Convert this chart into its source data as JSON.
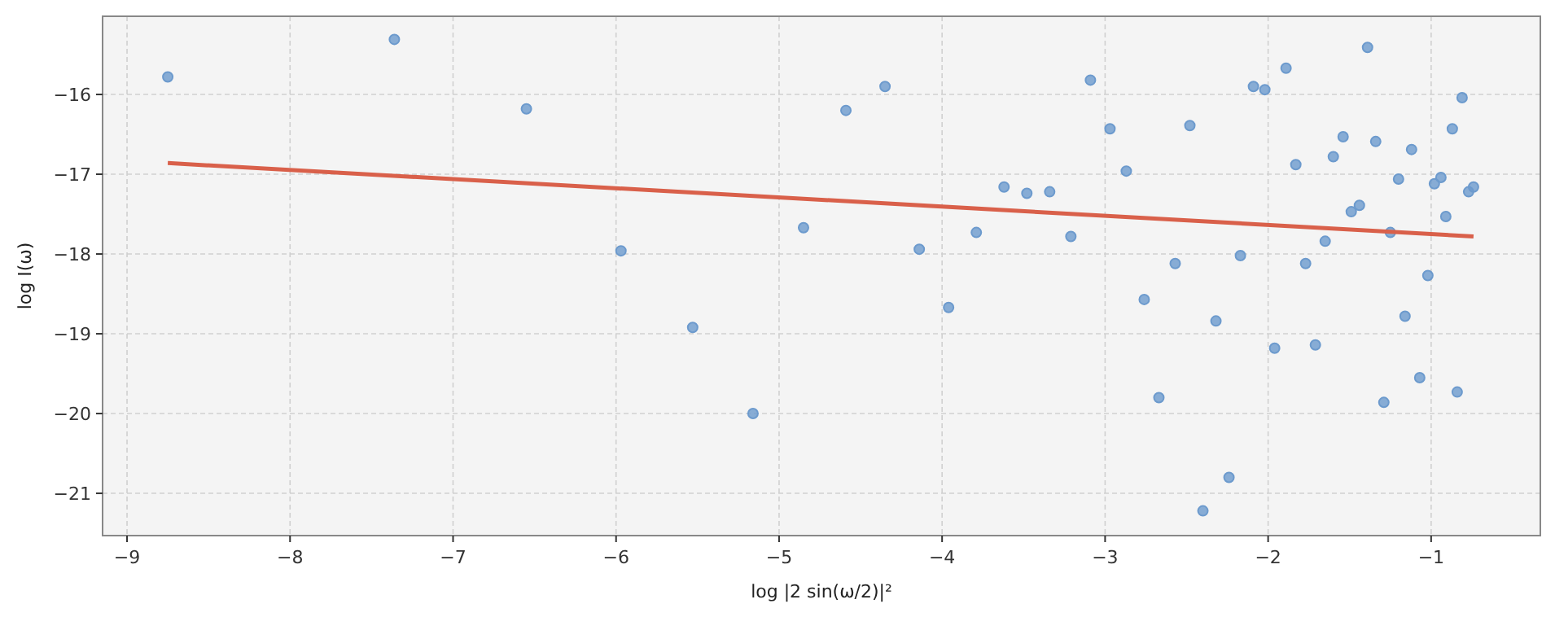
{
  "chart_data": {
    "type": "scatter",
    "xlabel": "log |2 sin(ω/2)|²",
    "ylabel": "log I(ω)",
    "xlim": [
      -9.15,
      -0.33
    ],
    "ylim": [
      -21.53,
      -15.02
    ],
    "xticks": [
      -9,
      -8,
      -7,
      -6,
      -5,
      -4,
      -3,
      -2,
      -1
    ],
    "yticks": [
      -21,
      -20,
      -19,
      -18,
      -17,
      -16
    ],
    "grid": true,
    "series": [
      {
        "marker": "circle",
        "color": "#6c9acd",
        "x": [
          -8.75,
          -7.36,
          -6.55,
          -5.97,
          -5.53,
          -5.16,
          -4.85,
          -4.59,
          -4.35,
          -4.14,
          -3.96,
          -3.79,
          -3.62,
          -3.48,
          -3.34,
          -3.21,
          -3.09,
          -2.97,
          -2.87,
          -2.76,
          -2.67,
          -2.57,
          -2.48,
          -2.4,
          -2.32,
          -2.24,
          -2.17,
          -2.09,
          -2.02,
          -1.96,
          -1.89,
          -1.83,
          -1.77,
          -1.71,
          -1.65,
          -1.6,
          -1.54,
          -1.49,
          -1.44,
          -1.39,
          -1.34,
          -1.29,
          -1.25,
          -1.2,
          -1.16,
          -1.12,
          -1.07,
          -1.02,
          -0.98,
          -0.94,
          -0.91,
          -0.87,
          -0.84,
          -0.81,
          -0.77,
          -0.74
        ],
        "values": [
          -15.78,
          -15.31,
          -16.18,
          -17.96,
          -18.92,
          -20.0,
          -17.67,
          -16.2,
          -15.9,
          -17.94,
          -18.67,
          -17.73,
          -17.16,
          -17.24,
          -17.22,
          -17.78,
          -15.82,
          -16.43,
          -16.96,
          -18.57,
          -19.8,
          -18.12,
          -16.39,
          -21.22,
          -18.84,
          -20.8,
          -18.02,
          -15.9,
          -15.94,
          -19.18,
          -15.67,
          -16.88,
          -18.12,
          -19.14,
          -17.84,
          -16.78,
          -16.53,
          -17.47,
          -17.39,
          -15.41,
          -16.59,
          -19.86,
          -17.73,
          -17.06,
          -18.78,
          -16.69,
          -19.55,
          -18.27,
          -17.12,
          -17.04,
          -17.53,
          -16.43,
          -19.73,
          -16.04,
          -17.22,
          -17.16
        ]
      },
      {
        "type": "line",
        "marker": "none",
        "color": "#d9604a",
        "x": [
          -8.75,
          -0.74
        ],
        "values": [
          -16.86,
          -17.78
        ]
      }
    ]
  }
}
